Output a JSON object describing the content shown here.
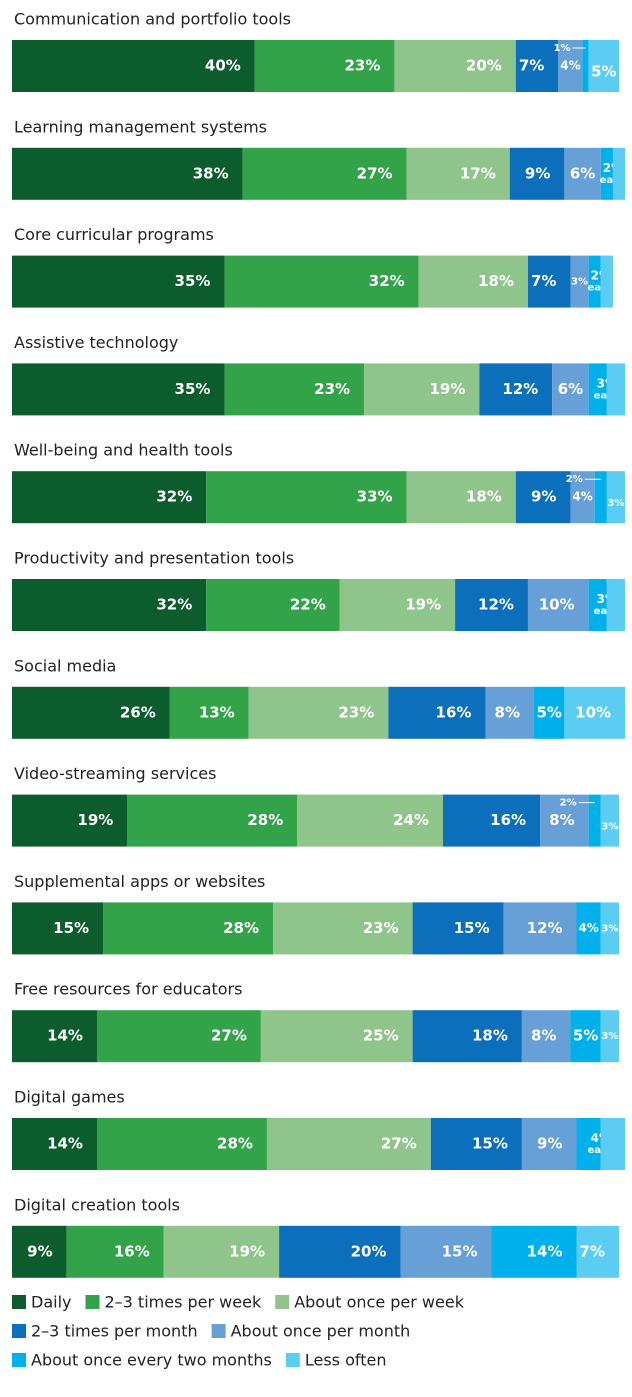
{
  "chart_data": {
    "type": "stacked-bar-horizontal",
    "categories": [
      "Communication and portfolio tools",
      "Learning management systems",
      "Core curricular programs",
      "Assistive technology",
      "Well-being and health tools",
      "Productivity and presentation tools",
      "Social media",
      "Video-streaming services",
      "Supplemental apps or websites",
      "Free resources for educators",
      "Digital games",
      "Digital creation tools"
    ],
    "series": [
      {
        "name": "Daily",
        "color": "#0d5c2e",
        "values": [
          40,
          38,
          35,
          35,
          32,
          32,
          26,
          19,
          15,
          14,
          14,
          9
        ],
        "value_labels": [
          "40%",
          "38%",
          "35%",
          "35%",
          "32%",
          "32%",
          "26%",
          "19%",
          "15%",
          "14%",
          "14%",
          "9%"
        ]
      },
      {
        "name": "2–3 times per week",
        "color": "#33a349",
        "values": [
          23,
          27,
          32,
          23,
          33,
          22,
          13,
          28,
          28,
          27,
          28,
          16
        ],
        "value_labels": [
          "23%",
          "27%",
          "32%",
          "23%",
          "33%",
          "22%",
          "13%",
          "28%",
          "28%",
          "27%",
          "28%",
          "16%"
        ]
      },
      {
        "name": "About once per week",
        "color": "#8fc48a",
        "values": [
          20,
          17,
          18,
          19,
          18,
          19,
          23,
          24,
          23,
          25,
          27,
          19
        ],
        "value_labels": [
          "20%",
          "17%",
          "18%",
          "19%",
          "18%",
          "19%",
          "23%",
          "24%",
          "23%",
          "25%",
          "27%",
          "19%"
        ]
      },
      {
        "name": "2–3 times per month",
        "color": "#0b6fbc",
        "values": [
          7,
          9,
          7,
          12,
          9,
          12,
          16,
          16,
          15,
          18,
          15,
          20
        ],
        "value_labels": [
          "7%",
          "9%",
          "7%",
          "12%",
          "9%",
          "12%",
          "16%",
          "16%",
          "15%",
          "18%",
          "15%",
          "20%"
        ]
      },
      {
        "name": "About once per month",
        "color": "#679fd7",
        "values": [
          4,
          6,
          3,
          6,
          4,
          10,
          8,
          8,
          12,
          8,
          9,
          15
        ],
        "value_labels": [
          "4%",
          "6%",
          "3%",
          "6%",
          "4%",
          "10%",
          "8%",
          "8%",
          "12%",
          "8%",
          "9%",
          "15%"
        ]
      },
      {
        "name": "About once every two months",
        "color": "#00b0eb",
        "values": [
          1,
          2,
          2,
          3,
          2,
          3,
          5,
          2,
          4,
          5,
          4,
          14
        ],
        "value_labels": [
          "1%",
          "2% each",
          "2% each",
          "3% each",
          "2%",
          "3% each",
          "5%",
          "2%",
          "4%",
          "5%",
          "4% each",
          "14%"
        ]
      },
      {
        "name": "Less often",
        "color": "#5ccdf2",
        "values": [
          5,
          2,
          2,
          3,
          3,
          3,
          10,
          3,
          3,
          3,
          4,
          7
        ],
        "value_labels": [
          "5%",
          null,
          null,
          null,
          "3%",
          null,
          "10%",
          "3%",
          "3%",
          "3%",
          null,
          "7%"
        ]
      }
    ]
  }
}
